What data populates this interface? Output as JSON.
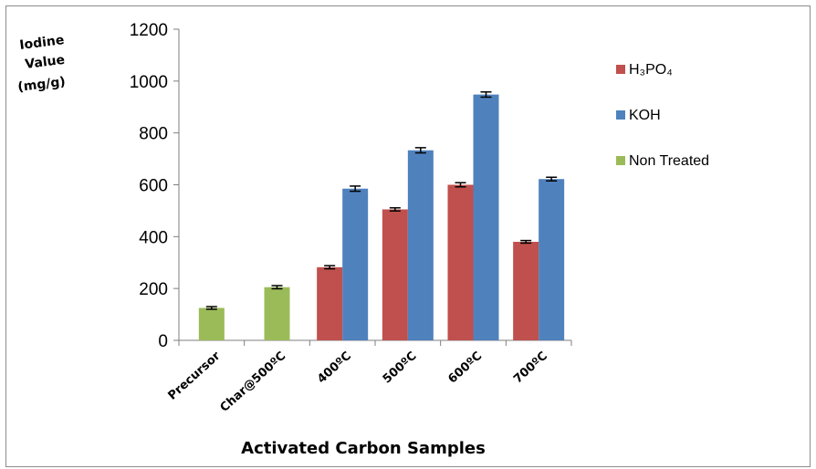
{
  "chart_data": {
    "type": "bar",
    "title": "",
    "ylabel_lines": [
      "Iodine",
      "Value",
      "(mg/g)"
    ],
    "xlabel": "Activated Carbon Samples",
    "categories": [
      "Precursor",
      "Char@500ºC",
      "400ºC",
      "500ºC",
      "600ºC",
      "700ºC"
    ],
    "ylim": [
      0,
      1200
    ],
    "yticks": [
      0,
      200,
      400,
      600,
      800,
      1000,
      1200
    ],
    "grid": false,
    "error_bars": true,
    "legend_position": "right",
    "series": [
      {
        "name": "H₃PO₄",
        "color": "#c0504d",
        "values": [
          null,
          null,
          282,
          505,
          600,
          380
        ],
        "errors": [
          null,
          null,
          6,
          6,
          8,
          5
        ]
      },
      {
        "name": "KOH",
        "color": "#4f81bd",
        "values": [
          null,
          null,
          585,
          733,
          948,
          622
        ],
        "errors": [
          null,
          null,
          10,
          10,
          10,
          7
        ]
      },
      {
        "name": "Non Treated",
        "color": "#9bbb59",
        "values": [
          125,
          205,
          null,
          null,
          null,
          null
        ],
        "errors": [
          5,
          6,
          null,
          null,
          null,
          null
        ]
      }
    ]
  }
}
